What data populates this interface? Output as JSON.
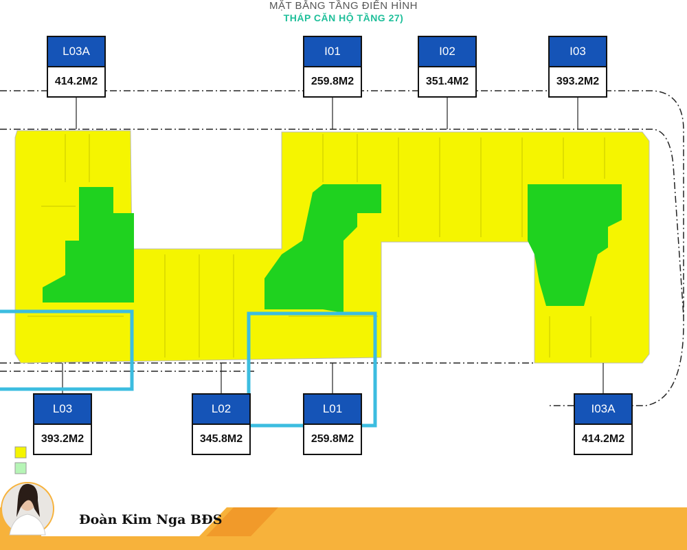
{
  "header": {
    "line1": "MẶT BẰNG TẦNG ĐIỂN HÌNH",
    "line2": "THÁP CĂN HỘ TẦNG 27)"
  },
  "units": [
    {
      "code": "L03A",
      "area": "414.2M2"
    },
    {
      "code": "I01",
      "area": "259.8M2"
    },
    {
      "code": "I02",
      "area": "351.4M2"
    },
    {
      "code": "I03",
      "area": "393.2M2"
    },
    {
      "code": "L03",
      "area": "393.2M2"
    },
    {
      "code": "L02",
      "area": "345.8M2"
    },
    {
      "code": "L01",
      "area": "259.8M2"
    },
    {
      "code": "I03A",
      "area": "414.2M2"
    }
  ],
  "footer": {
    "name": "Đoàn Kim Nga BĐS"
  }
}
